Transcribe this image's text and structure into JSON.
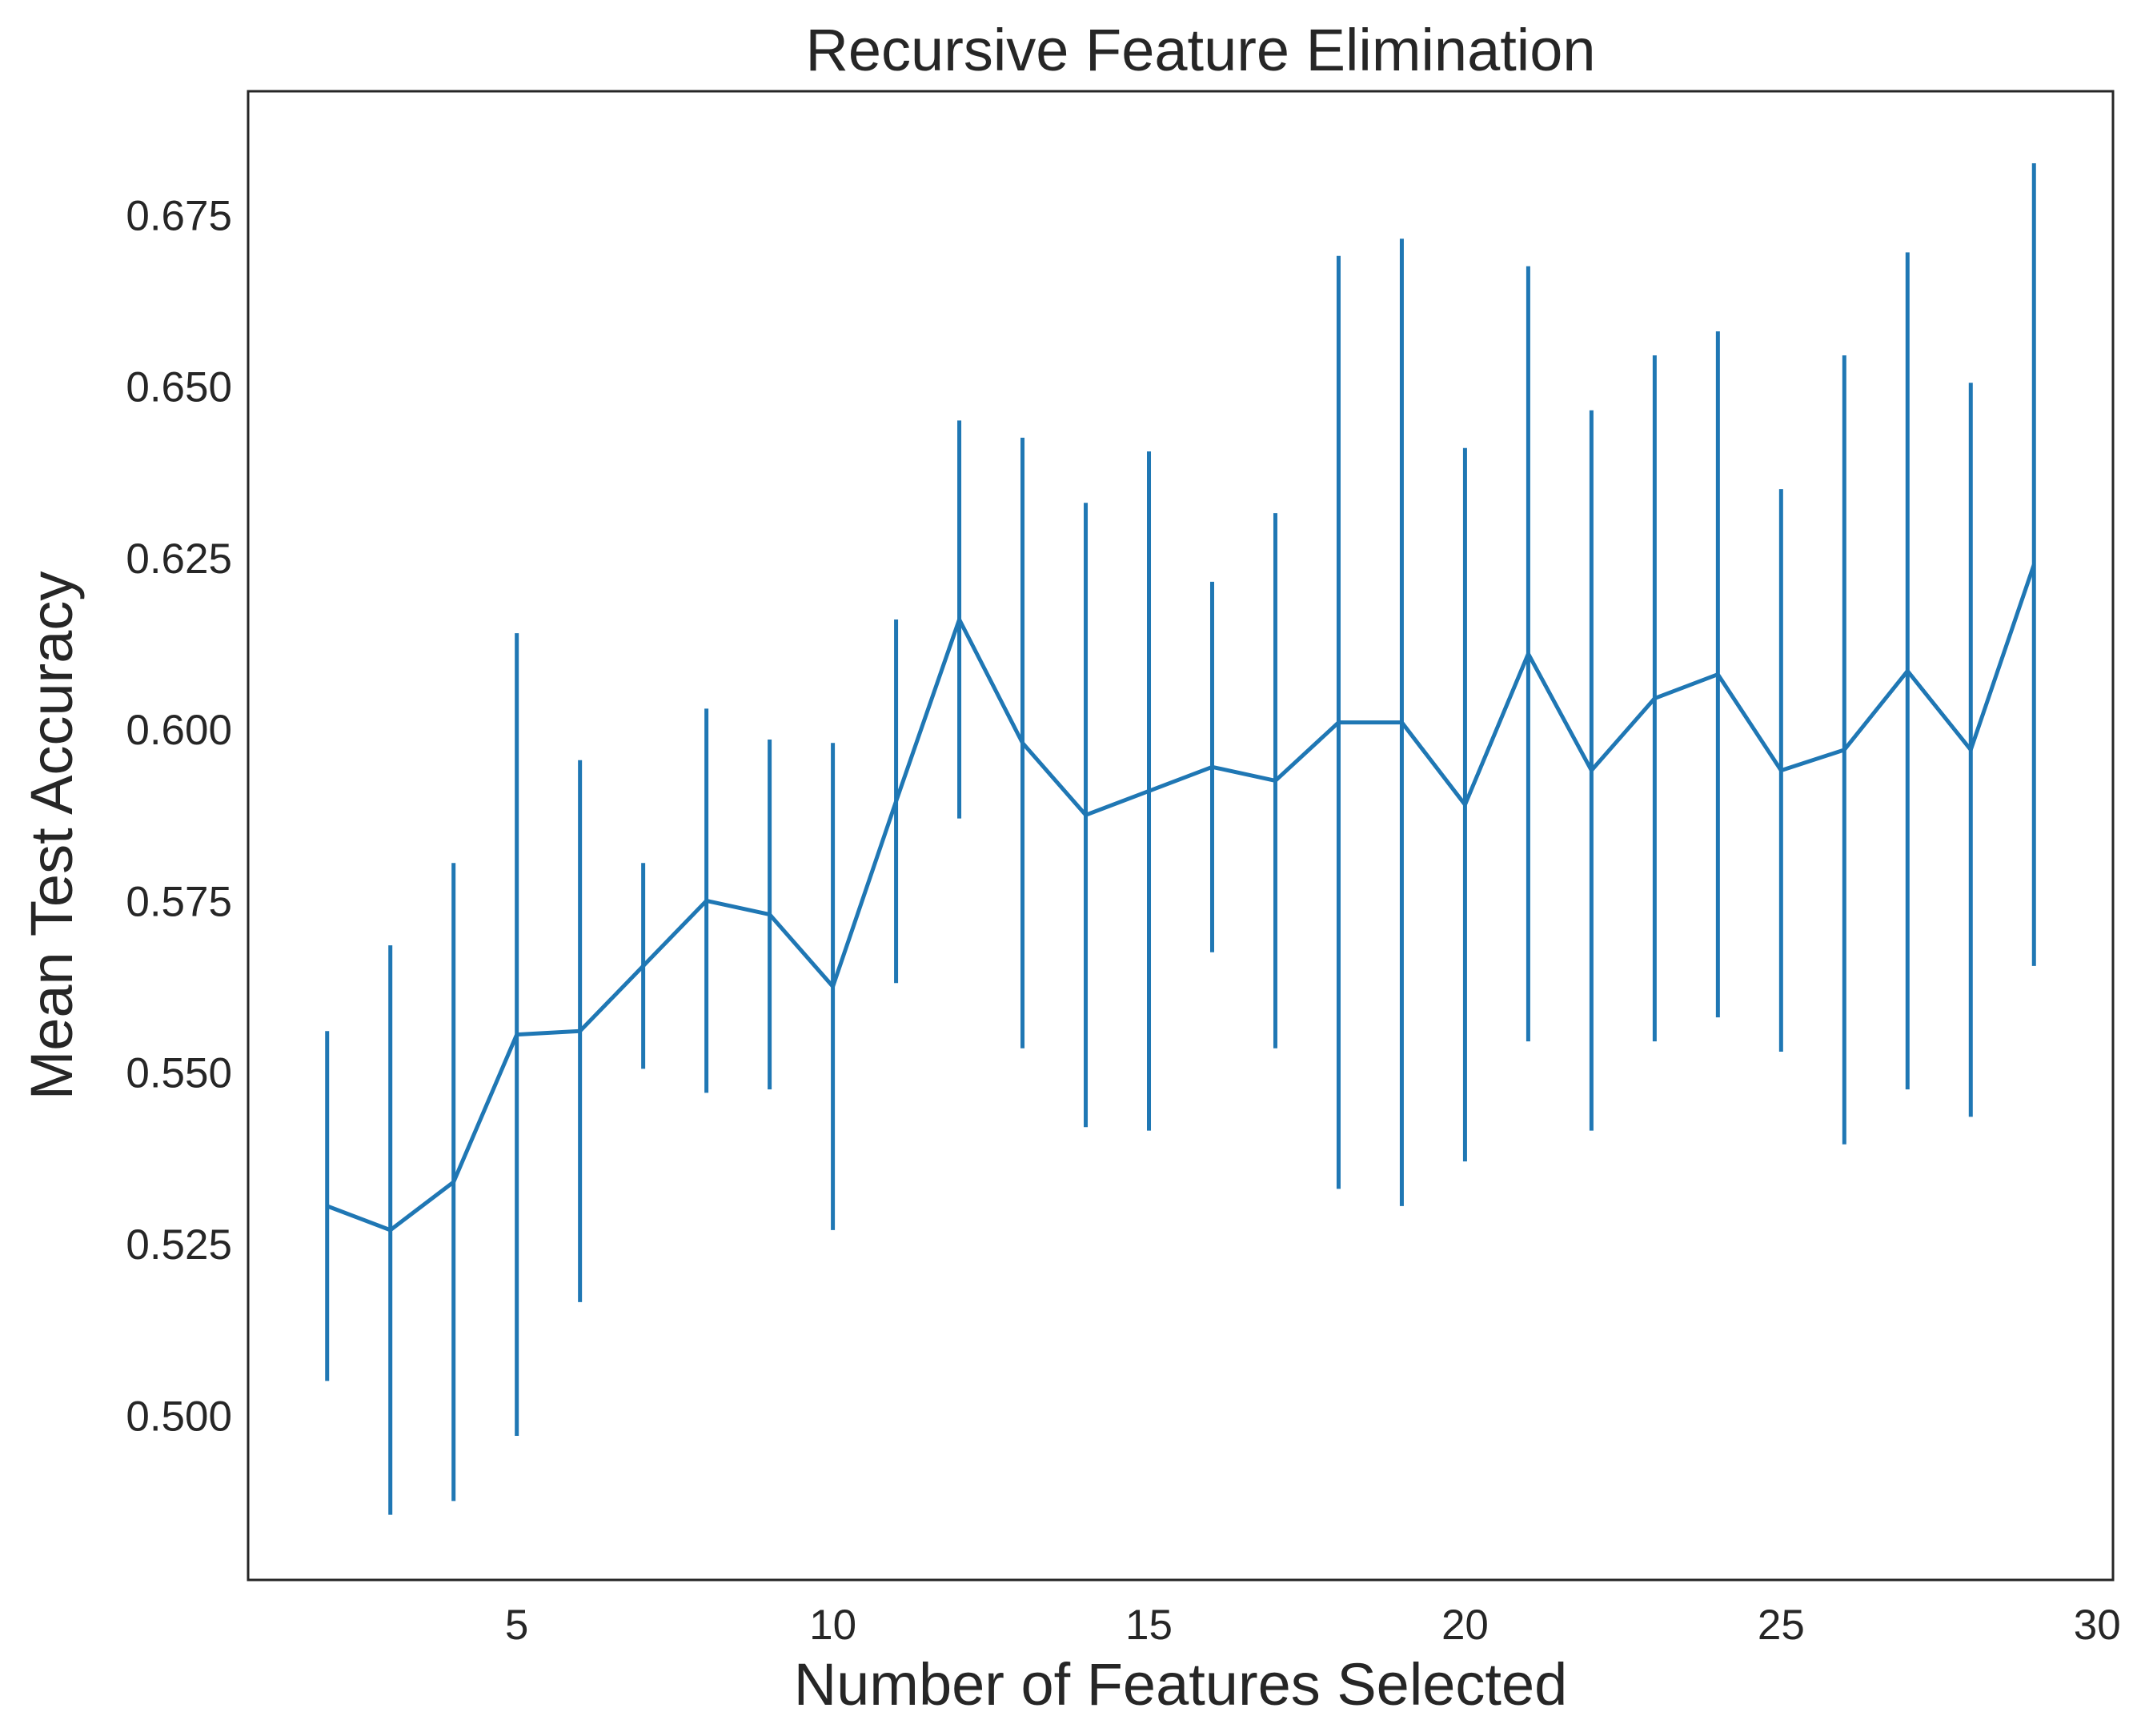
{
  "chart_data": {
    "type": "line",
    "title": "Recursive Feature Elimination",
    "xlabel": "Number of Features Selected",
    "ylabel": "Mean Test Accuracy",
    "xlim": [
      0.75,
      30.25
    ],
    "ylim": [
      0.476,
      0.693
    ],
    "xticks": [
      5,
      10,
      15,
      20,
      25,
      30
    ],
    "yticks": [
      0.5,
      0.525,
      0.55,
      0.575,
      0.6,
      0.625,
      0.65,
      0.675
    ],
    "ytick_labels": [
      "0.500",
      "0.525",
      "0.550",
      "0.575",
      "0.600",
      "0.625",
      "0.650",
      "0.675"
    ],
    "grid": false,
    "color": "#1f77b4",
    "series": [
      {
        "x": [
          2,
          3,
          4,
          5,
          6,
          7,
          8,
          9,
          10,
          11,
          12,
          13,
          14,
          15,
          16,
          17,
          18,
          19,
          20,
          21,
          22,
          23,
          24,
          25,
          26,
          27,
          28,
          29
        ],
        "y": [
          0.5305,
          0.527,
          0.534,
          0.5555,
          0.556,
          0.5655,
          0.575,
          0.573,
          0.5625,
          0.5895,
          0.616,
          0.598,
          0.5875,
          0.591,
          0.5945,
          0.5925,
          0.601,
          0.601,
          0.589,
          0.611,
          0.594,
          0.6045,
          0.608,
          0.594,
          0.597,
          0.6085,
          0.597,
          0.624
        ],
        "error": [
          0.0255,
          0.0415,
          0.0465,
          0.0585,
          0.0395,
          0.015,
          0.028,
          0.0255,
          0.0355,
          0.0265,
          0.029,
          0.0445,
          0.0455,
          0.0495,
          0.027,
          0.039,
          0.068,
          0.0705,
          0.052,
          0.0565,
          0.0525,
          0.05,
          0.05,
          0.041,
          0.0575,
          0.061,
          0.0535,
          0.0585
        ]
      }
    ]
  }
}
